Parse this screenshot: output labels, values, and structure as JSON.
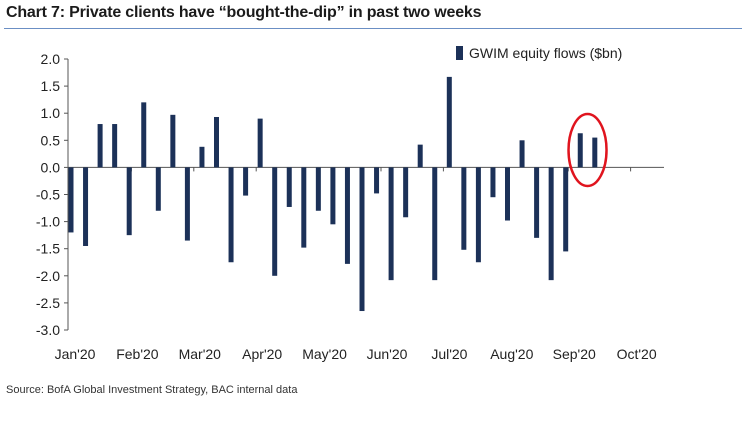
{
  "title": "Chart 7: Private clients have “bought-the-dip” in past two weeks",
  "source": "Source: BofA Global Investment Strategy, BAC internal data",
  "colors": {
    "bar": "#1c3158",
    "highlight": "#e0141e",
    "rule": "#6b8fc4"
  },
  "chart_data": {
    "type": "bar",
    "title": "Chart 7: Private clients have “bought-the-dip” in past two weeks",
    "xlabel": "",
    "ylabel": "",
    "ylim": [
      -3.0,
      2.0
    ],
    "yticks": [
      "2.0",
      "1.5",
      "1.0",
      "0.5",
      "0.0",
      "-0.5",
      "-1.0",
      "-1.5",
      "-2.0",
      "-2.5",
      "-3.0"
    ],
    "month_labels": [
      "Jan'20",
      "Feb'20",
      "Mar'20",
      "Apr'20",
      "May'20",
      "Jun'20",
      "Jul'20",
      "Aug'20",
      "Sep'20",
      "Oct'20"
    ],
    "legend_position": "top-right",
    "series": [
      {
        "name": "GWIM equity flows ($bn)",
        "values": [
          -1.2,
          -1.45,
          0.8,
          0.8,
          -1.25,
          1.2,
          -0.8,
          0.97,
          -1.35,
          0.38,
          0.93,
          -1.75,
          -0.52,
          0.9,
          -2.0,
          -0.73,
          -1.48,
          -0.8,
          -1.05,
          -1.78,
          -2.65,
          -0.48,
          -2.08,
          -0.92,
          0.42,
          -2.08,
          1.67,
          -1.52,
          -1.75,
          -0.55,
          -0.98,
          0.5,
          -1.3,
          -2.08,
          -1.55,
          0.63,
          0.55
        ]
      }
    ],
    "annotation": "red circle highlighting last two weekly bars"
  }
}
